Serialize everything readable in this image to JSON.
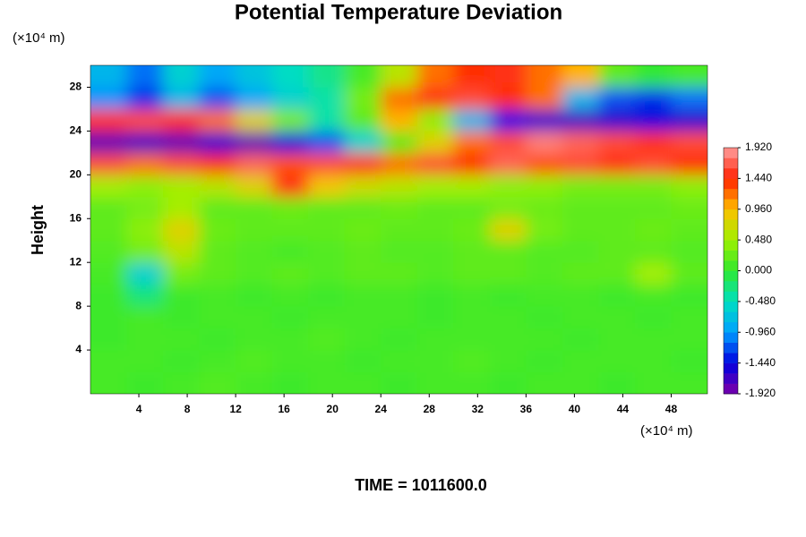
{
  "chart_data": {
    "type": "heatmap",
    "title": "Potential Temperature Deviation",
    "ylabel": "Height",
    "xunit": "(×10⁴ m)",
    "yunit": "(×10⁴ m)",
    "footer": "TIME = 1011600.0",
    "xlim": [
      0,
      51
    ],
    "ylim": [
      0,
      30
    ],
    "xticks": [
      4,
      8,
      12,
      16,
      20,
      24,
      28,
      32,
      36,
      40,
      44,
      48
    ],
    "yticks": [
      4,
      8,
      12,
      16,
      20,
      24,
      28
    ],
    "zlim": [
      -1.92,
      1.92
    ],
    "zticks": [
      {
        "value": -1.92,
        "label": "-1.920"
      },
      {
        "value": -1.44,
        "label": "-1.440"
      },
      {
        "value": -0.96,
        "label": "-0.960"
      },
      {
        "value": -0.48,
        "label": "-0.480"
      },
      {
        "value": 0,
        "label": "0.000"
      },
      {
        "value": 0.48,
        "label": "0.480"
      },
      {
        "value": 0.96,
        "label": "0.960"
      },
      {
        "value": 1.44,
        "label": "1.440"
      },
      {
        "value": 1.92,
        "label": "1.920"
      }
    ],
    "colorscale": [
      "#8000a8",
      "#0000e0",
      "#00a0ff",
      "#00e0c0",
      "#30e830",
      "#a0f000",
      "#ffc000",
      "#ff2000",
      "#ffa0a0"
    ],
    "x": [
      1.5,
      4.5,
      7.5,
      10.5,
      13.5,
      16.5,
      19.5,
      22.5,
      25.5,
      28.5,
      31.5,
      34.5,
      37.5,
      40.5,
      43.5,
      46.5,
      49.5
    ],
    "y": [
      1,
      3,
      5,
      7,
      9,
      11,
      13,
      15,
      17,
      19,
      21,
      23,
      25,
      27,
      29
    ],
    "z": [
      [
        0.1,
        0.05,
        0.1,
        0.15,
        0.1,
        0.05,
        0.1,
        0.1,
        0.05,
        0.1,
        0.1,
        0.05,
        0.1,
        0.1,
        0.05,
        0.1,
        0.1
      ],
      [
        0.1,
        0.1,
        0.05,
        0.1,
        0.15,
        0.1,
        0.1,
        0.05,
        0.1,
        0.1,
        0.15,
        0.1,
        0.05,
        0.1,
        0.1,
        0.1,
        0.05
      ],
      [
        0.05,
        0.1,
        0.1,
        0.05,
        0.1,
        0.1,
        0.15,
        0.1,
        0.05,
        0.1,
        0.1,
        0.1,
        0.1,
        0.05,
        0.1,
        0.1,
        0.1
      ],
      [
        0.05,
        0.1,
        0.05,
        0.1,
        0.1,
        0.05,
        0.1,
        0.1,
        0.1,
        0.05,
        0.1,
        0.1,
        0.05,
        0.1,
        0.1,
        0.05,
        0.1
      ],
      [
        0.05,
        -0.25,
        0.05,
        0.1,
        0.05,
        0.1,
        0.05,
        0.1,
        0.1,
        0.05,
        0.1,
        0.05,
        0.1,
        0.1,
        0.05,
        0.1,
        0.05
      ],
      [
        0.1,
        -0.6,
        0.3,
        0.2,
        0.15,
        0.2,
        0.15,
        0.2,
        0.2,
        0.15,
        0.2,
        0.2,
        0.15,
        0.2,
        0.2,
        0.5,
        0.2
      ],
      [
        0.15,
        0.3,
        0.6,
        0.2,
        0.15,
        0.1,
        0.15,
        0.2,
        0.15,
        0.15,
        0.2,
        0.2,
        0.15,
        0.15,
        0.2,
        0.2,
        0.15
      ],
      [
        0.2,
        0.4,
        0.8,
        0.25,
        0.2,
        0.2,
        0.2,
        0.25,
        0.2,
        0.2,
        0.25,
        0.8,
        0.3,
        0.2,
        0.2,
        0.25,
        0.2
      ],
      [
        0.2,
        0.3,
        0.5,
        0.2,
        0.2,
        0.25,
        0.2,
        0.2,
        0.25,
        0.2,
        0.2,
        0.3,
        0.25,
        0.2,
        0.2,
        0.2,
        0.25
      ],
      [
        0.5,
        0.4,
        0.5,
        0.6,
        0.8,
        1.5,
        0.9,
        0.7,
        0.6,
        0.5,
        0.5,
        0.4,
        0.4,
        0.3,
        0.3,
        0.3,
        0.4
      ],
      [
        1.6,
        1.2,
        1.6,
        1.4,
        1.7,
        1.3,
        1.6,
        1.5,
        1.2,
        1.6,
        1.4,
        1.7,
        1.3,
        1.6,
        1.5,
        1.6,
        1.4
      ],
      [
        -1.8,
        -1.7,
        -1.8,
        -1.6,
        -1.8,
        -1.5,
        -1.2,
        -0.6,
        0.2,
        0.8,
        1.2,
        1.6,
        1.8,
        1.7,
        1.6,
        1.5,
        1.6
      ],
      [
        1.5,
        1.6,
        1.4,
        1.2,
        0.8,
        0.3,
        -0.4,
        0.2,
        1.0,
        0.4,
        -0.8,
        -1.4,
        -1.6,
        -1.7,
        -1.6,
        -1.5,
        -1.6
      ],
      [
        -1.0,
        -1.3,
        -0.8,
        -1.2,
        -0.9,
        -0.6,
        -0.4,
        0.3,
        1.2,
        1.5,
        1.6,
        1.4,
        1.2,
        -0.8,
        -1.2,
        -1.3,
        -1.1
      ],
      [
        -0.8,
        -1.1,
        -0.6,
        -0.9,
        -0.7,
        -0.5,
        -0.3,
        0.1,
        0.6,
        1.2,
        1.4,
        1.5,
        1.2,
        1.0,
        0.2,
        0.0,
        0.1
      ]
    ]
  }
}
